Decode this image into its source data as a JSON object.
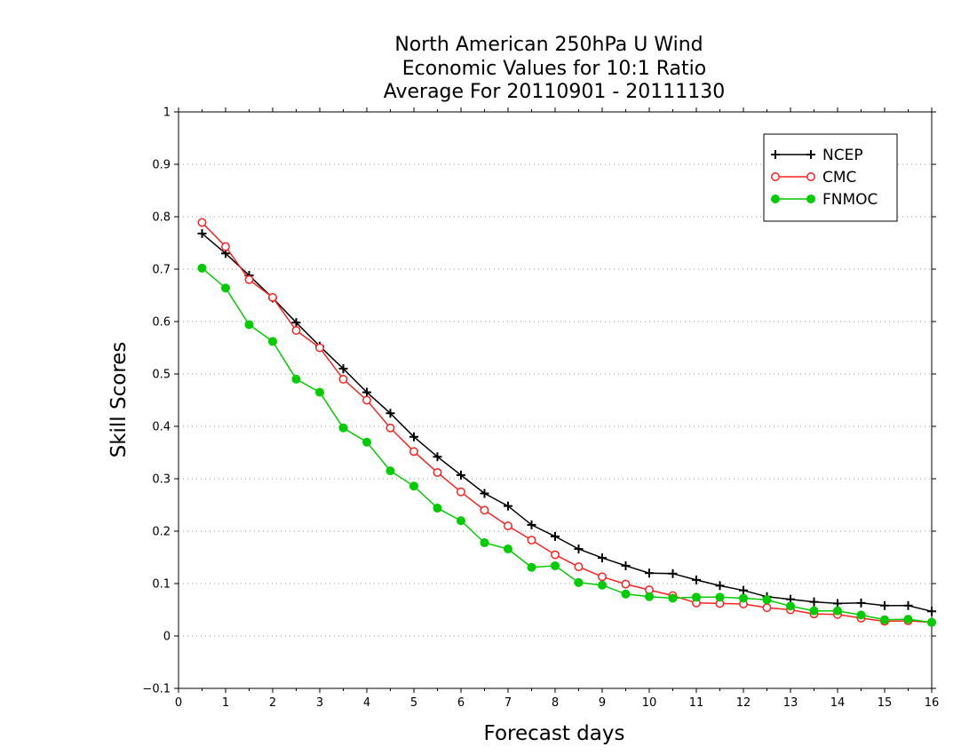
{
  "chart_data": {
    "type": "line",
    "title_lines": [
      "North American 250hPa U Wind",
      "Economic Values for 10:1 Ratio",
      "Average For 20110901 - 20111130"
    ],
    "xlabel": "Forecast days",
    "ylabel": "Skill Scores",
    "xlim": [
      0,
      16
    ],
    "ylim": [
      -0.1,
      1
    ],
    "x_ticks": [
      "0",
      "1",
      "2",
      "3",
      "4",
      "5",
      "6",
      "7",
      "8",
      "9",
      "10",
      "11",
      "12",
      "13",
      "14",
      "15",
      "16"
    ],
    "y_ticks": [
      "−0.1",
      "0",
      "0.1",
      "0.2",
      "0.3",
      "0.4",
      "0.5",
      "0.6",
      "0.7",
      "0.8",
      "0.9",
      "1"
    ],
    "grid": "horizontal dotted",
    "legend_position": "top-right",
    "x": [
      0.5,
      1,
      1.5,
      2,
      2.5,
      3,
      3.5,
      4,
      4.5,
      5,
      5.5,
      6,
      6.5,
      7,
      7.5,
      8,
      8.5,
      9,
      9.5,
      10,
      10.5,
      11,
      11.5,
      12,
      12.5,
      13,
      13.5,
      14,
      14.5,
      15,
      15.5,
      16
    ],
    "series": [
      {
        "name": "NCEP",
        "color": "#000000",
        "marker": "plus",
        "values": [
          0.768,
          0.73,
          0.688,
          0.645,
          0.598,
          0.553,
          0.51,
          0.465,
          0.425,
          0.38,
          0.342,
          0.307,
          0.272,
          0.248,
          0.212,
          0.19,
          0.166,
          0.149,
          0.134,
          0.12,
          0.119,
          0.107,
          0.096,
          0.087,
          0.075,
          0.07,
          0.065,
          0.062,
          0.063,
          0.058,
          0.058,
          0.047
        ]
      },
      {
        "name": "CMC",
        "color": "#ff2020",
        "marker": "open-circle",
        "values": [
          0.789,
          0.743,
          0.68,
          0.646,
          0.583,
          0.55,
          0.49,
          0.45,
          0.397,
          0.352,
          0.312,
          0.275,
          0.24,
          0.21,
          0.183,
          0.155,
          0.132,
          0.113,
          0.099,
          0.088,
          0.077,
          0.063,
          0.062,
          0.061,
          0.054,
          0.05,
          0.042,
          0.041,
          0.034,
          0.028,
          0.029,
          0.026
        ]
      },
      {
        "name": "FNMOC",
        "color": "#00cc00",
        "marker": "filled-circle",
        "values": [
          0.702,
          0.664,
          0.594,
          0.562,
          0.49,
          0.465,
          0.397,
          0.37,
          0.315,
          0.286,
          0.244,
          0.22,
          0.178,
          0.166,
          0.131,
          0.134,
          0.102,
          0.097,
          0.08,
          0.075,
          0.072,
          0.074,
          0.074,
          0.072,
          0.069,
          0.057,
          0.048,
          0.048,
          0.04,
          0.031,
          0.032,
          0.026
        ]
      }
    ]
  }
}
